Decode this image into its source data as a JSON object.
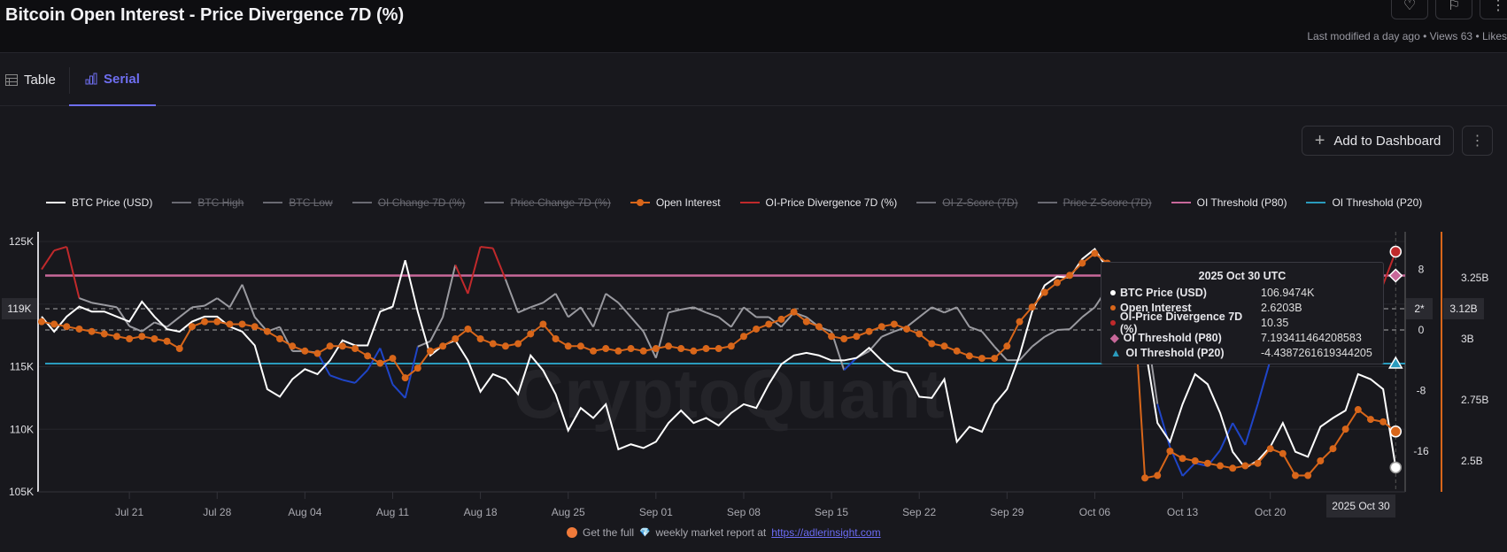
{
  "header": {
    "title": "Bitcoin Open Interest - Price Divergence 7D (%)",
    "meta": "Last modified a day ago • Views 63 • Likes"
  },
  "tabs": [
    {
      "label": "Table",
      "icon": "table-icon"
    },
    {
      "label": "Serial",
      "icon": "bar-chart-icon",
      "active": true
    }
  ],
  "toolbar": {
    "add_label": "Add to Dashboard",
    "add_icon": "+",
    "more_icon": "⋮"
  },
  "watermark": "CryptoQuant",
  "footer": {
    "prefix": "Get the full",
    "gem": "💎",
    "middle": "weekly market report at",
    "link": "https://adlerinsight.com"
  },
  "crosshair": {
    "x_label": "2025 Oct 30",
    "price_label": "119K",
    "div_label": "2*",
    "oi_label": "3.12B"
  },
  "tooltip": {
    "title": "2025 Oct 30 UTC",
    "rows": [
      {
        "label": "BTC Price (USD)",
        "value": "106.9474K",
        "color": "#ffffff",
        "marker": "dot"
      },
      {
        "label": "Open Interest",
        "value": "2.6203B",
        "color": "#d8661a",
        "marker": "dot"
      },
      {
        "label": "OI-Price Divergence 7D (%)",
        "value": "10.35",
        "color": "#c0292b",
        "marker": "dot"
      },
      {
        "label": "OI Threshold (P80)",
        "value": "7.193411464208583",
        "color": "#c8689a",
        "marker": "diamond"
      },
      {
        "label": "OI Threshold (P20)",
        "value": "-4.4387261619344205",
        "color": "#2a9bbd",
        "marker": "triangle"
      }
    ]
  },
  "chart_data": {
    "type": "line",
    "x_start": "2025 Jul 14",
    "x_end": "2025 Oct 30",
    "x_step": "1 day",
    "x_ticks": [
      "Jul 21",
      "Jul 28",
      "Aug 04",
      "Aug 11",
      "Aug 18",
      "Aug 25",
      "Sep 01",
      "Sep 08",
      "Sep 15",
      "Sep 22",
      "Sep 29",
      "Oct 06",
      "Oct 13",
      "Oct 20"
    ],
    "y_left": {
      "ticks": [
        "125K",
        "115K",
        "110K",
        "105K"
      ],
      "tick_values": [
        125,
        115,
        110,
        105
      ],
      "range": [
        105,
        125
      ],
      "unit": "K USD"
    },
    "y_div": {
      "ticks": [
        "8",
        "0",
        "-8",
        "-16"
      ],
      "tick_values": [
        8,
        0,
        -8,
        -16
      ]
    },
    "y_oi": {
      "ticks": [
        "3.25B",
        "3B",
        "2.75B",
        "2.5B"
      ],
      "tick_values": [
        3.25,
        3,
        2.75,
        2.5
      ]
    },
    "legend": [
      {
        "name": "BTC Price (USD)",
        "color": "#ffffff",
        "hidden": false,
        "dot": false
      },
      {
        "name": "BTC High",
        "color": "#6a6a72",
        "hidden": true,
        "dot": false
      },
      {
        "name": "BTC Low",
        "color": "#6a6a72",
        "hidden": true,
        "dot": false
      },
      {
        "name": "OI Change 7D (%)",
        "color": "#6a6a72",
        "hidden": true,
        "dot": false
      },
      {
        "name": "Price Change 7D (%)",
        "color": "#6a6a72",
        "hidden": true,
        "dot": false
      },
      {
        "name": "Open Interest",
        "color": "#d8661a",
        "hidden": false,
        "dot": true
      },
      {
        "name": "OI-Price Divergence 7D (%)",
        "color": "#c0292b",
        "hidden": false,
        "dot": false
      },
      {
        "name": "OI Z-Score (7D)",
        "color": "#6a6a72",
        "hidden": true,
        "dot": false
      },
      {
        "name": "Price Z-Score (7D)",
        "color": "#6a6a72",
        "hidden": true,
        "dot": false
      },
      {
        "name": "OI Threshold (P80)",
        "color": "#c8689a",
        "hidden": false,
        "dot": false
      },
      {
        "name": "OI Threshold (P20)",
        "color": "#2a9bbd",
        "hidden": false,
        "dot": false
      }
    ],
    "series": [
      {
        "name": "BTC Price (USD)",
        "axis": "left",
        "color": "#ffffff",
        "values": [
          119,
          117.8,
          119,
          119.8,
          119.4,
          119.4,
          119,
          118.6,
          120.2,
          119,
          118,
          117.8,
          118.6,
          119,
          119,
          118.2,
          117.8,
          116.7,
          113.2,
          112.6,
          114,
          114.8,
          114.4,
          115.5,
          117.1,
          116.7,
          116.7,
          119.4,
          119.8,
          123.5,
          119.4,
          115.9,
          116.7,
          117.1,
          115.5,
          113,
          114.4,
          114,
          112.8,
          115.9,
          114.7,
          112.8,
          109.9,
          111.7,
          110.9,
          112,
          108.4,
          108.8,
          108.5,
          109,
          110.5,
          111.5,
          110.5,
          110.9,
          110.3,
          111.3,
          112,
          111.7,
          113.6,
          115.2,
          115.9,
          116.1,
          115.9,
          115.5,
          115.5,
          115.7,
          116.5,
          115.5,
          114.7,
          114.5,
          112.6,
          112.5,
          114,
          109,
          110.2,
          109.8,
          112,
          113.2,
          115.9,
          119.4,
          121.5,
          122.2,
          122.1,
          123.6,
          124.4,
          122.8,
          122.1,
          121.7,
          116.7,
          110.5,
          109,
          112,
          114.4,
          113.6,
          111.3,
          108.2,
          106.9,
          107.5,
          108.6,
          110.5,
          108.2,
          107.8,
          110.2,
          110.9,
          111.5,
          114.4,
          114,
          113.2,
          106.9474
        ]
      },
      {
        "name": "Open Interest",
        "axis": "oi",
        "color": "#d8661a",
        "values": [
          3.07,
          3.06,
          3.05,
          3.04,
          3.03,
          3.02,
          3.01,
          3.0,
          3.01,
          3.0,
          2.99,
          2.96,
          3.05,
          3.07,
          3.07,
          3.06,
          3.06,
          3.05,
          3.03,
          3.0,
          2.97,
          2.95,
          2.94,
          2.97,
          2.97,
          2.96,
          2.93,
          2.9,
          2.92,
          2.84,
          2.88,
          2.95,
          2.97,
          3.0,
          3.04,
          3.0,
          2.98,
          2.97,
          2.98,
          3.02,
          3.06,
          3.0,
          2.97,
          2.97,
          2.95,
          2.96,
          2.95,
          2.96,
          2.95,
          2.96,
          2.97,
          2.96,
          2.95,
          2.96,
          2.96,
          2.97,
          3.01,
          3.04,
          3.06,
          3.08,
          3.11,
          3.07,
          3.05,
          3.01,
          3.0,
          3.01,
          3.03,
          3.05,
          3.06,
          3.04,
          3.02,
          2.98,
          2.97,
          2.95,
          2.93,
          2.92,
          2.92,
          2.97,
          3.07,
          3.13,
          3.19,
          3.23,
          3.26,
          3.31,
          3.35,
          3.31,
          3.3,
          3.25,
          2.43,
          2.44,
          2.54,
          2.51,
          2.5,
          2.49,
          2.48,
          2.47,
          2.48,
          2.49,
          2.55,
          2.53,
          2.44,
          2.44,
          2.5,
          2.55,
          2.63,
          2.71,
          2.67,
          2.66,
          2.6203
        ]
      },
      {
        "name": "OI-Price Divergence 7D (%)",
        "axis": "div",
        "color": "#9a9aa0",
        "color_above": "#c0292b",
        "color_below": "#1f45c8",
        "values": [
          8,
          10.5,
          11,
          4.2,
          3.6,
          3.3,
          3,
          0.5,
          -0.2,
          1,
          0.4,
          1.7,
          3,
          3.2,
          4.2,
          3,
          6,
          1.7,
          -0.2,
          0.4,
          -2.8,
          -2.8,
          -3,
          -6,
          -6.6,
          -7,
          -5.3,
          -2.4,
          -7.2,
          -9,
          -2.2,
          -1.5,
          1.7,
          8.6,
          4.8,
          11,
          10.8,
          6.7,
          2.3,
          3,
          3.6,
          4.8,
          1.7,
          3,
          0.4,
          4.8,
          3.6,
          1.7,
          -0.2,
          -3.7,
          2.3,
          2.7,
          3,
          2.3,
          1.7,
          0.4,
          3,
          1.7,
          1.7,
          0.4,
          2.3,
          1.7,
          0.4,
          -0.2,
          -5.3,
          -3.7,
          -2.8,
          -0.9,
          -0.2,
          0.4,
          1.7,
          3,
          2.3,
          3,
          0.4,
          -0.2,
          -2.2,
          -4,
          -4,
          -2.2,
          -0.9,
          0,
          0.1,
          1.7,
          3,
          5.5,
          5.1,
          3.6,
          1.7,
          -9.8,
          -15.5,
          -19.3,
          -17.6,
          -18,
          -15.9,
          -12.3,
          -15.2,
          -9.8,
          -4,
          -2,
          -1,
          0,
          1,
          2,
          3,
          4,
          5,
          6,
          10.35
        ]
      },
      {
        "name": "OI Threshold (P80)",
        "axis": "div",
        "color": "#c8689a",
        "value": 7.193411464208583
      },
      {
        "name": "OI Threshold (P20)",
        "axis": "div",
        "color": "#2a9bbd",
        "value": -4.4387261619344205
      }
    ]
  }
}
